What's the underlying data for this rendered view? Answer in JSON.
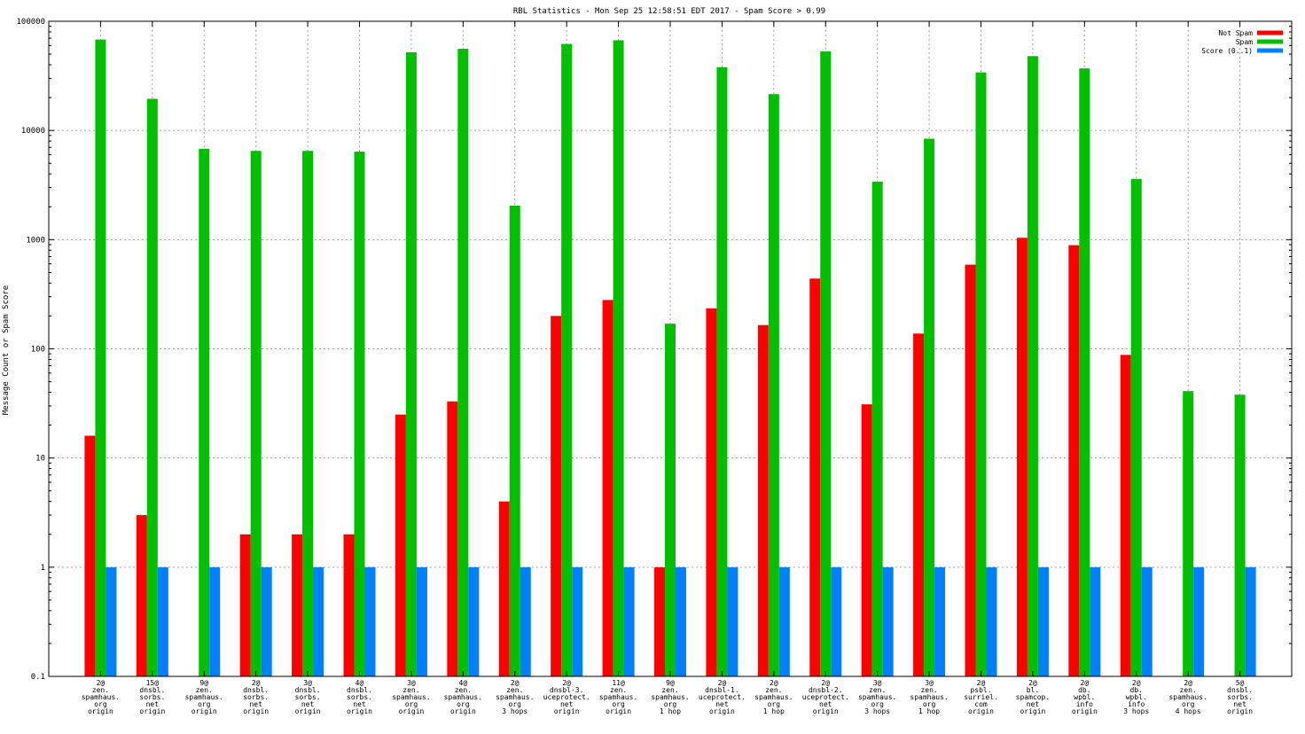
{
  "chart_data": {
    "type": "bar",
    "title": "RBL Statistics - Mon Sep 25 12:58:51 EDT 2017 - Spam Score > 0.99",
    "xlabel": "",
    "ylabel": "Message Count or Spam Score",
    "yscale": "log",
    "ylim": [
      0.1,
      100000
    ],
    "yticks": [
      "0.1",
      "1",
      "10",
      "100",
      "1000",
      "10000",
      "100000"
    ],
    "grid": true,
    "legend_position": "top-right",
    "categories": [
      [
        "2@",
        "zen.",
        "spamhaus.",
        "org",
        "origin"
      ],
      [
        "15@",
        "dnsbl.",
        "sorbs.",
        "net",
        "origin"
      ],
      [
        "9@",
        "zen.",
        "spamhaus.",
        "org",
        "origin"
      ],
      [
        "2@",
        "dnsbl.",
        "sorbs.",
        "net",
        "origin"
      ],
      [
        "3@",
        "dnsbl.",
        "sorbs.",
        "net",
        "origin"
      ],
      [
        "4@",
        "dnsbl.",
        "sorbs.",
        "net",
        "origin"
      ],
      [
        "3@",
        "zen.",
        "spamhaus.",
        "org",
        "origin"
      ],
      [
        "4@",
        "zen.",
        "spamhaus.",
        "org",
        "origin"
      ],
      [
        "2@",
        "zen.",
        "spamhaus.",
        "org",
        "3 hops"
      ],
      [
        "2@",
        "dnsbl-3.",
        "uceprotect.",
        "net",
        "origin"
      ],
      [
        "11@",
        "zen.",
        "spamhaus.",
        "org",
        "origin"
      ],
      [
        "9@",
        "zen.",
        "spamhaus.",
        "org",
        "1 hop"
      ],
      [
        "2@",
        "dnsbl-1.",
        "uceprotect.",
        "net",
        "origin"
      ],
      [
        "2@",
        "zen.",
        "spamhaus.",
        "org",
        "1 hop"
      ],
      [
        "2@",
        "dnsbl-2.",
        "uceprotect.",
        "net",
        "origin"
      ],
      [
        "3@",
        "zen.",
        "spamhaus.",
        "org",
        "3 hops"
      ],
      [
        "3@",
        "zen.",
        "spamhaus.",
        "org",
        "1 hop"
      ],
      [
        "2@",
        "psbl.",
        "surriel.",
        "com",
        "origin"
      ],
      [
        "2@",
        "bl.",
        "spamcop.",
        "net",
        "origin"
      ],
      [
        "2@",
        "db.",
        "wpbl.",
        "info",
        "origin"
      ],
      [
        "2@",
        "db.",
        "wpbl.",
        "info",
        "3 hops"
      ],
      [
        "2@",
        "zen.",
        "spamhaus.",
        "org",
        "4 hops"
      ],
      [
        "5@",
        "dnsbl.",
        "sorbs.",
        "net",
        "origin"
      ]
    ],
    "series": [
      {
        "name": "Not Spam",
        "color": "#ff0000",
        "values": [
          16,
          3,
          null,
          2,
          2,
          2,
          25,
          33,
          4,
          200,
          280,
          1,
          235,
          165,
          440,
          31,
          138,
          590,
          1040,
          890,
          88,
          null,
          null
        ]
      },
      {
        "name": "Spam",
        "color": "#00c000",
        "values": [
          68000,
          19500,
          6800,
          6500,
          6500,
          6400,
          52000,
          56000,
          2050,
          62000,
          67000,
          170,
          38000,
          21500,
          53000,
          3400,
          8400,
          34000,
          48000,
          37000,
          3600,
          41,
          38
        ]
      },
      {
        "name": "Score (0..1)",
        "color": "#0080ff",
        "values": [
          1,
          1,
          1,
          1,
          1,
          1,
          1,
          1,
          1,
          1,
          1,
          1,
          1,
          1,
          1,
          1,
          1,
          1,
          1,
          1,
          1,
          1,
          1
        ]
      }
    ]
  }
}
